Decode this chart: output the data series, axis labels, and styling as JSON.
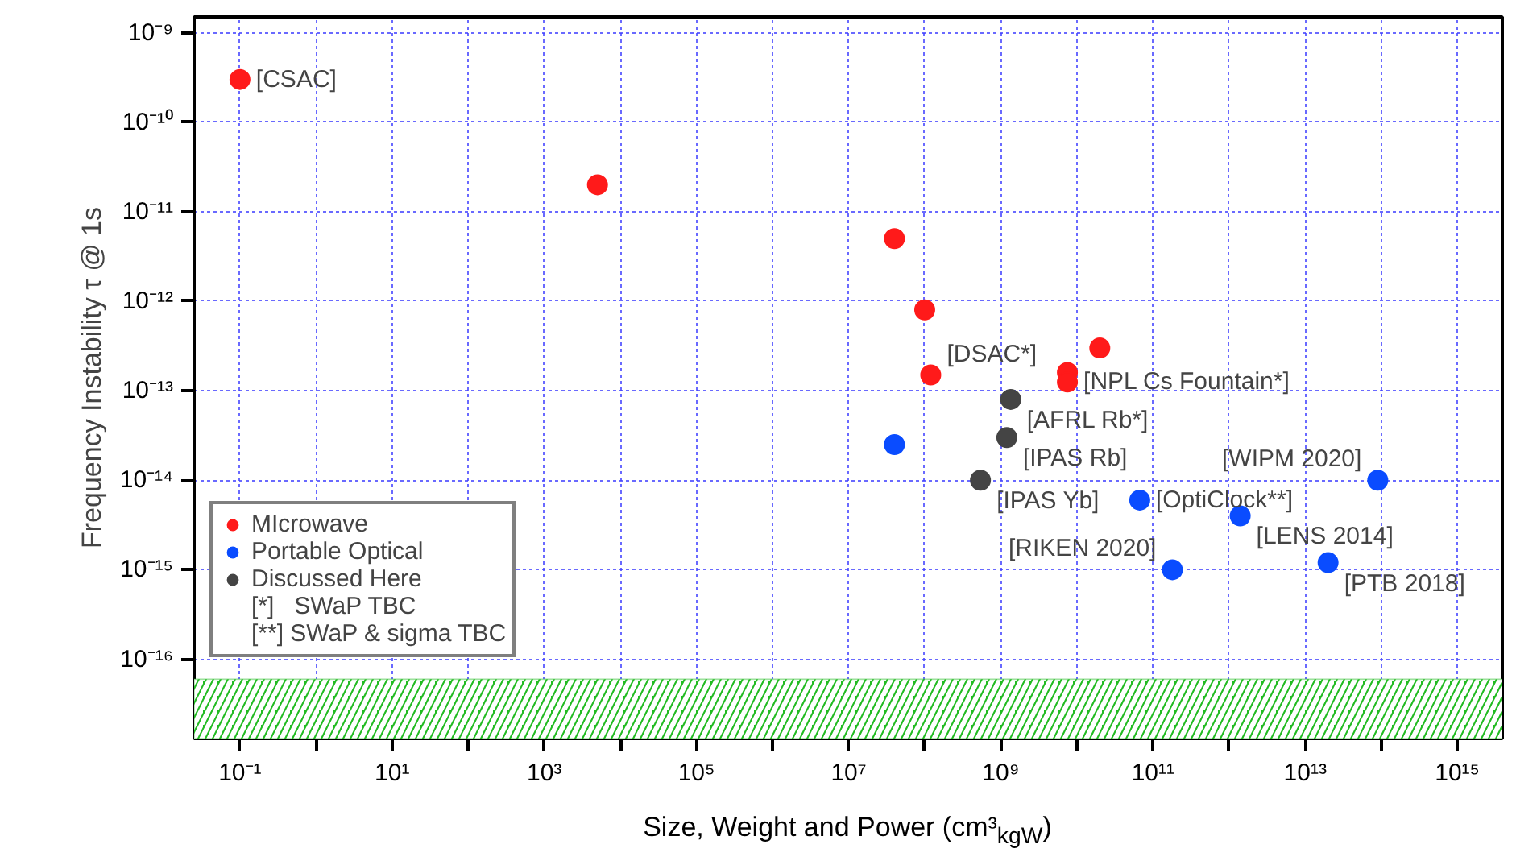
{
  "chart_data": {
    "type": "scatter",
    "xlabel": "Size, Weight and Power (cm³$_{kgW}$)",
    "ylabel": "Frequency Instability τ @ 1s",
    "log": "xy",
    "grid": true,
    "legend": "bottom left",
    "marker": "circle",
    "xlim": [
      0.025,
      3900000000000000.0
    ],
    "ylim": [
      1.3e-17,
      1.5e-09
    ],
    "xticks": [
      {
        "value": 0.1,
        "label": "10⁻¹"
      },
      {
        "value": 1,
        "label": null
      },
      {
        "value": 10,
        "label": "10¹"
      },
      {
        "value": 100,
        "label": null
      },
      {
        "value": 1000,
        "label": "10³"
      },
      {
        "value": 10000,
        "label": null
      },
      {
        "value": 100000,
        "label": "10⁵"
      },
      {
        "value": 1000000,
        "label": null
      },
      {
        "value": 10000000,
        "label": "10⁷"
      },
      {
        "value": 100000000,
        "label": null
      },
      {
        "value": 1000000000,
        "label": "10⁹"
      },
      {
        "value": 10000000000,
        "label": null
      },
      {
        "value": 100000000000,
        "label": "10¹¹"
      },
      {
        "value": 1000000000000,
        "label": null
      },
      {
        "value": 10000000000000,
        "label": "10¹³"
      },
      {
        "value": 100000000000000,
        "label": null
      },
      {
        "value": 1000000000000000,
        "label": "10¹⁵"
      }
    ],
    "yticks": [
      {
        "value": 1e-16,
        "label": "10⁻¹⁶"
      },
      {
        "value": 1e-15,
        "label": "10⁻¹⁵"
      },
      {
        "value": 1e-14,
        "label": "10⁻¹⁴"
      },
      {
        "value": 1e-13,
        "label": "10⁻¹³"
      },
      {
        "value": 1e-12,
        "label": "10⁻¹²"
      },
      {
        "value": 1e-11,
        "label": "10⁻¹¹"
      },
      {
        "value": 1e-10,
        "label": "10⁻¹⁰"
      },
      {
        "value": 1e-09,
        "label": "10⁻⁹"
      }
    ],
    "series": [
      {
        "name": "MIcrowave",
        "color": "#ff1a1a",
        "x": [
          0.1,
          5000,
          40000000.0,
          100000000.0,
          120000000.0,
          20000000000.0,
          7500000000.0,
          7500000000.0
        ],
        "values": [
          3e-10,
          2e-11,
          5e-12,
          8e-13,
          1.5e-13,
          3e-13,
          1.6e-13,
          1.25e-13
        ]
      },
      {
        "name": "Portable Optical",
        "color": "#0a4cff",
        "x": [
          40000000.0,
          90000000000000.0,
          67000000000.0,
          1400000000000.0,
          20000000000000.0,
          180000000000.0
        ],
        "values": [
          2.5e-14,
          1e-14,
          6e-15,
          4e-15,
          1.2e-15,
          1e-15
        ]
      },
      {
        "name": "Discussed Here",
        "color": "#444444",
        "x": [
          1350000000.0,
          1200000000.0,
          540000000.0
        ],
        "values": [
          8e-14,
          3e-14,
          1e-14
        ]
      }
    ],
    "bands": [
      {
        "axis": "y",
        "from": 1.3e-17,
        "to": 6e-17,
        "color": "#22bb22"
      }
    ],
    "annotations": [
      {
        "text": "[CSAC]",
        "x": 0.1,
        "y": 3e-10
      },
      {
        "text": "[DSAC*]",
        "x": 120000000.0,
        "y": 1.5e-13
      },
      {
        "text": "[NPL Cs Fountain*]",
        "x": 7500000000.0,
        "y": 1.25e-13
      },
      {
        "text": "[AFRL Rb*]",
        "x": 1350000000.0,
        "y": 8e-14
      },
      {
        "text": "[IPAS Rb]",
        "x": 1200000000.0,
        "y": 3e-14
      },
      {
        "text": "[IPAS Yb]",
        "x": 540000000.0,
        "y": 1e-14
      },
      {
        "text": "[WIPM 2020]",
        "x": 90000000000000.0,
        "y": 1e-14
      },
      {
        "text": "[OptiClock**]",
        "x": 67000000000.0,
        "y": 6e-15
      },
      {
        "text": "[LENS 2014]",
        "x": 1400000000000.0,
        "y": 4e-15
      },
      {
        "text": "[PTB 2018]",
        "x": 20000000000000.0,
        "y": 1.2e-15
      },
      {
        "text": "[RIKEN 2020]",
        "x": 180000000000.0,
        "y": 1e-15
      },
      "[*]   SWaP TBC",
      "[**] SWaP & sigma TBC"
    ]
  }
}
